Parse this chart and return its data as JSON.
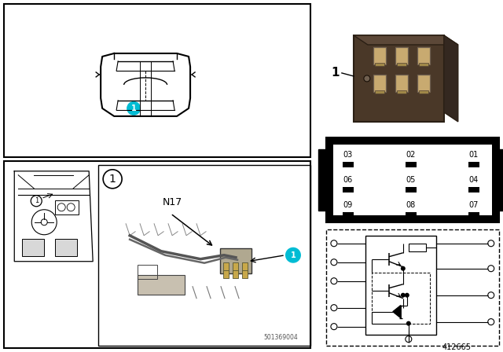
{
  "title": "",
  "bg_color": "#ffffff",
  "border_color": "#000000",
  "cyan_color": "#00bcd4",
  "relay_photo_placeholder": true,
  "pin_grid_labels": [
    [
      "03",
      "02",
      "01"
    ],
    [
      "06",
      "05",
      "04"
    ],
    [
      "09",
      "08",
      "07"
    ]
  ],
  "part_number": "412665",
  "watermark": "501369004"
}
